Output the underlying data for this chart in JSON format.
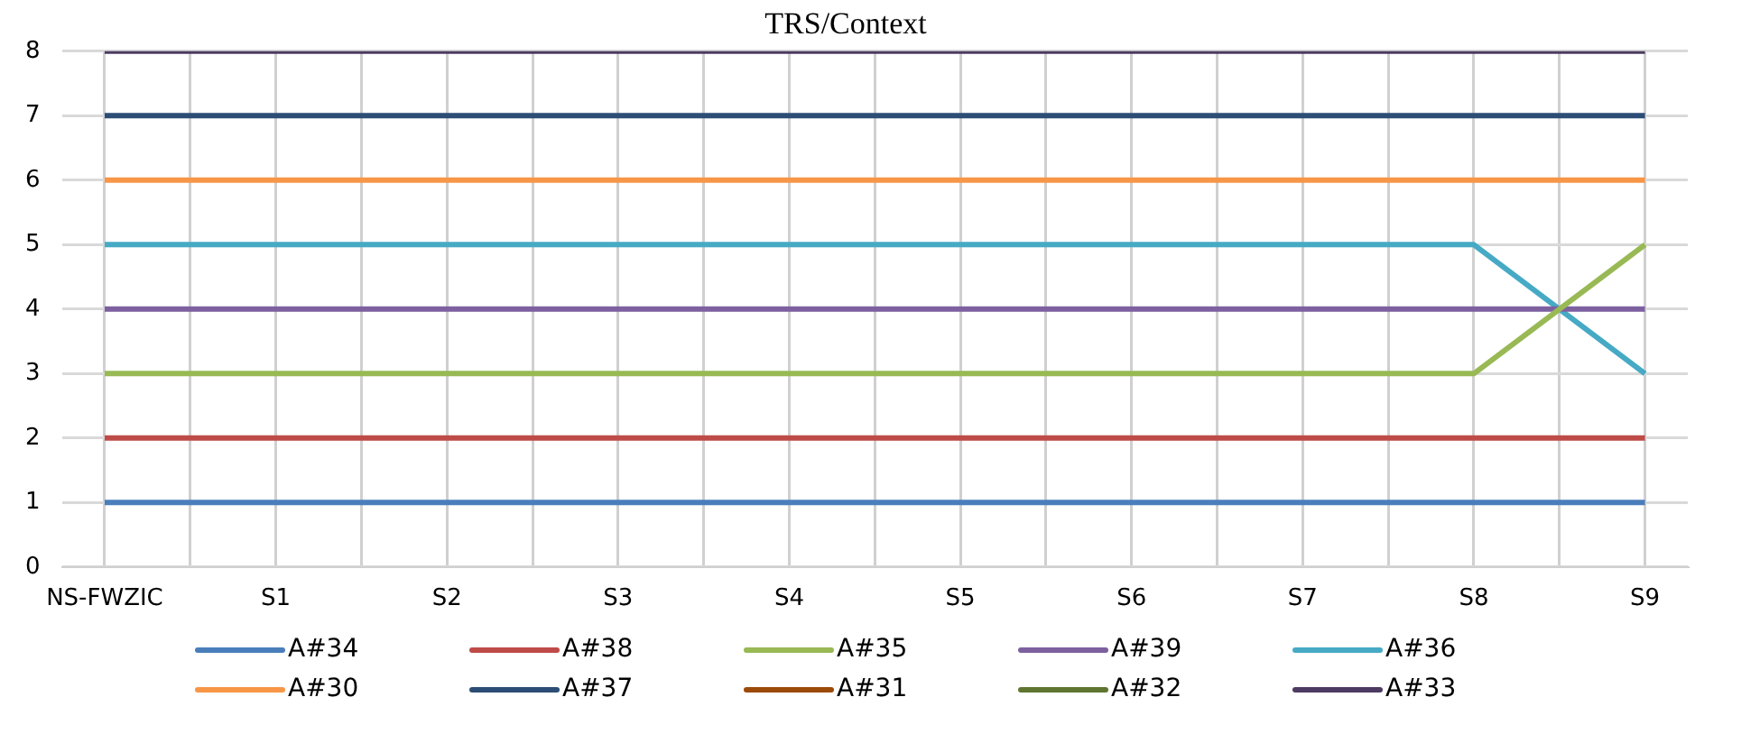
{
  "chart_data": {
    "type": "line",
    "title": "TRS/Context",
    "categories": [
      "NS-FWZIC",
      null,
      "S1",
      null,
      "S2",
      null,
      "S3",
      null,
      "S4",
      null,
      "S5",
      null,
      "S6",
      null,
      "S7",
      null,
      "S8",
      null,
      "S9"
    ],
    "series": [
      {
        "name": "A#34",
        "color": "#4a7ebb",
        "values": [
          1,
          1,
          1,
          1,
          1,
          1,
          1,
          1,
          1,
          1,
          1,
          1,
          1,
          1,
          1,
          1,
          1,
          1,
          1
        ]
      },
      {
        "name": "A#38",
        "color": "#be4b48",
        "values": [
          2,
          2,
          2,
          2,
          2,
          2,
          2,
          2,
          2,
          2,
          2,
          2,
          2,
          2,
          2,
          2,
          2,
          2,
          2
        ]
      },
      {
        "name": "A#35",
        "color": "#98b954",
        "values": [
          3,
          3,
          3,
          3,
          3,
          3,
          3,
          3,
          3,
          3,
          3,
          3,
          3,
          3,
          3,
          3,
          3,
          4,
          5
        ]
      },
      {
        "name": "A#39",
        "color": "#7d60a0",
        "values": [
          4,
          4,
          4,
          4,
          4,
          4,
          4,
          4,
          4,
          4,
          4,
          4,
          4,
          4,
          4,
          4,
          4,
          4,
          4
        ]
      },
      {
        "name": "A#36",
        "color": "#46aac5",
        "values": [
          5,
          5,
          5,
          5,
          5,
          5,
          5,
          5,
          5,
          5,
          5,
          5,
          5,
          5,
          5,
          5,
          5,
          4,
          3
        ]
      },
      {
        "name": "A#30",
        "color": "#f79646",
        "values": [
          6,
          6,
          6,
          6,
          6,
          6,
          6,
          6,
          6,
          6,
          6,
          6,
          6,
          6,
          6,
          6,
          6,
          6,
          6
        ]
      },
      {
        "name": "A#37",
        "color": "#2c4d75",
        "values": [
          7,
          7,
          7,
          7,
          7,
          7,
          7,
          7,
          7,
          7,
          7,
          7,
          7,
          7,
          7,
          7,
          7,
          7,
          7
        ]
      },
      {
        "name": "A#31",
        "color": "#9c4a08",
        "values": [
          null,
          null,
          null,
          null,
          null,
          null,
          null,
          null,
          null,
          null,
          null,
          null,
          null,
          null,
          null,
          null,
          null,
          null,
          null
        ]
      },
      {
        "name": "A#32",
        "color": "#5f7530",
        "values": [
          null,
          null,
          null,
          null,
          null,
          null,
          null,
          null,
          null,
          null,
          null,
          null,
          null,
          null,
          null,
          null,
          null,
          null,
          null
        ]
      },
      {
        "name": "A#33",
        "color": "#4d3b62",
        "values": [
          8,
          8,
          8,
          8,
          8,
          8,
          8,
          8,
          8,
          8,
          8,
          8,
          8,
          8,
          8,
          8,
          8,
          8,
          8
        ]
      }
    ],
    "ylim": [
      0,
      8
    ],
    "yticks": [
      0,
      1,
      2,
      3,
      4,
      5,
      6,
      7,
      8
    ],
    "grid": true,
    "legend": "bottom",
    "marker": "none",
    "line_style": "solid"
  }
}
